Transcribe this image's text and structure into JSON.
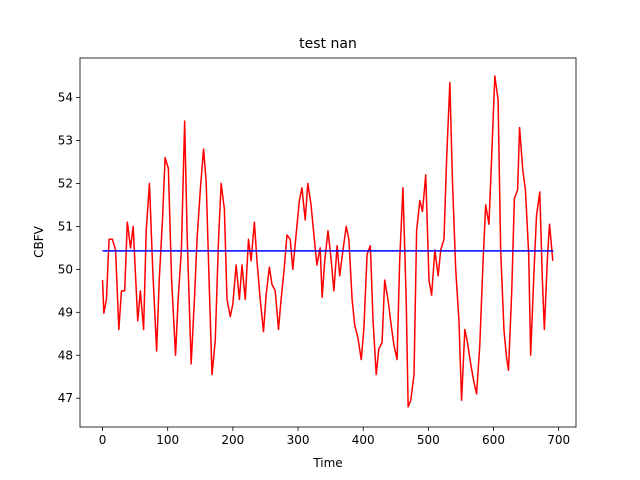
{
  "chart_data": {
    "type": "line",
    "title": "test nan",
    "x_label": "Time",
    "y_label": "CBFV",
    "xlim": [
      -34.6,
      726.6
    ],
    "ylim": [
      46.33,
      54.92
    ],
    "xticks": [
      0,
      100,
      200,
      300,
      400,
      500,
      600,
      700
    ],
    "yticks": [
      47,
      48,
      49,
      50,
      51,
      52,
      53,
      54
    ],
    "series": [
      {
        "color": "#ff0000",
        "x": [
          0,
          2,
          6,
          10,
          15,
          20,
          25,
          29,
          34,
          38,
          43,
          47,
          54,
          58,
          63,
          67,
          72,
          77,
          83,
          87,
          92,
          96,
          101,
          106,
          112,
          116,
          121,
          126,
          130,
          136,
          141,
          145,
          150,
          155,
          159,
          164,
          168,
          173,
          178,
          182,
          187,
          191,
          196,
          200,
          205,
          210,
          214,
          219,
          224,
          228,
          233,
          237,
          242,
          247,
          251,
          256,
          260,
          265,
          270,
          274,
          279,
          283,
          288,
          292,
          297,
          302,
          306,
          311,
          315,
          320,
          325,
          329,
          334,
          337,
          341,
          346,
          351,
          355,
          360,
          364,
          369,
          374,
          378,
          383,
          387,
          392,
          397,
          401,
          406,
          411,
          415,
          420,
          424,
          429,
          433,
          438,
          443,
          447,
          452,
          456,
          461,
          466,
          469,
          473,
          478,
          482,
          487,
          491,
          496,
          501,
          505,
          510,
          515,
          519,
          524,
          528,
          533,
          537,
          542,
          547,
          551,
          556,
          560,
          565,
          569,
          574,
          579,
          584,
          588,
          593,
          597,
          602,
          607,
          611,
          616,
          620,
          623,
          628,
          632,
          637,
          640,
          645,
          649,
          654,
          657,
          662,
          666,
          671,
          675,
          678,
          683,
          686,
          691
        ],
        "values": [
          49.75,
          48.98,
          49.3,
          50.7,
          50.7,
          50.45,
          48.6,
          49.5,
          49.5,
          51.1,
          50.5,
          51.0,
          48.8,
          49.5,
          48.6,
          50.9,
          52.0,
          50.0,
          48.1,
          49.75,
          51.15,
          52.6,
          52.35,
          49.75,
          48.0,
          49.3,
          50.45,
          53.45,
          50.7,
          47.8,
          49.3,
          50.7,
          51.85,
          52.8,
          52.05,
          49.5,
          47.55,
          48.35,
          50.7,
          52.0,
          51.4,
          49.3,
          48.9,
          49.2,
          50.1,
          49.3,
          50.1,
          49.3,
          50.7,
          50.2,
          51.1,
          50.2,
          49.3,
          48.55,
          49.4,
          50.05,
          49.65,
          49.5,
          48.6,
          49.3,
          50.05,
          50.8,
          50.7,
          50.0,
          50.8,
          51.6,
          51.9,
          51.15,
          52.0,
          51.5,
          50.7,
          50.1,
          50.5,
          49.35,
          50.2,
          50.9,
          50.2,
          49.5,
          50.55,
          49.85,
          50.45,
          51.0,
          50.7,
          49.3,
          48.7,
          48.4,
          47.9,
          48.6,
          50.35,
          50.55,
          48.85,
          47.55,
          48.15,
          48.3,
          49.75,
          49.3,
          48.7,
          48.25,
          47.9,
          50.2,
          51.9,
          49.3,
          46.8,
          46.95,
          47.55,
          50.9,
          51.6,
          51.35,
          52.2,
          49.75,
          49.4,
          50.45,
          49.85,
          50.45,
          50.7,
          52.55,
          54.35,
          52.05,
          50.0,
          48.8,
          46.95,
          48.6,
          48.3,
          47.8,
          47.45,
          47.1,
          48.25,
          50.2,
          51.5,
          51.05,
          52.55,
          54.5,
          53.95,
          50.45,
          48.6,
          47.95,
          47.65,
          49.5,
          51.65,
          51.85,
          53.3,
          52.3,
          51.85,
          50.35,
          48.0,
          49.9,
          51.25,
          51.8,
          49.75,
          48.6,
          50.35,
          51.05,
          50.2
        ]
      },
      {
        "color": "#0000ff",
        "x": [
          0,
          692
        ],
        "values": [
          50.43,
          50.43
        ]
      }
    ]
  }
}
